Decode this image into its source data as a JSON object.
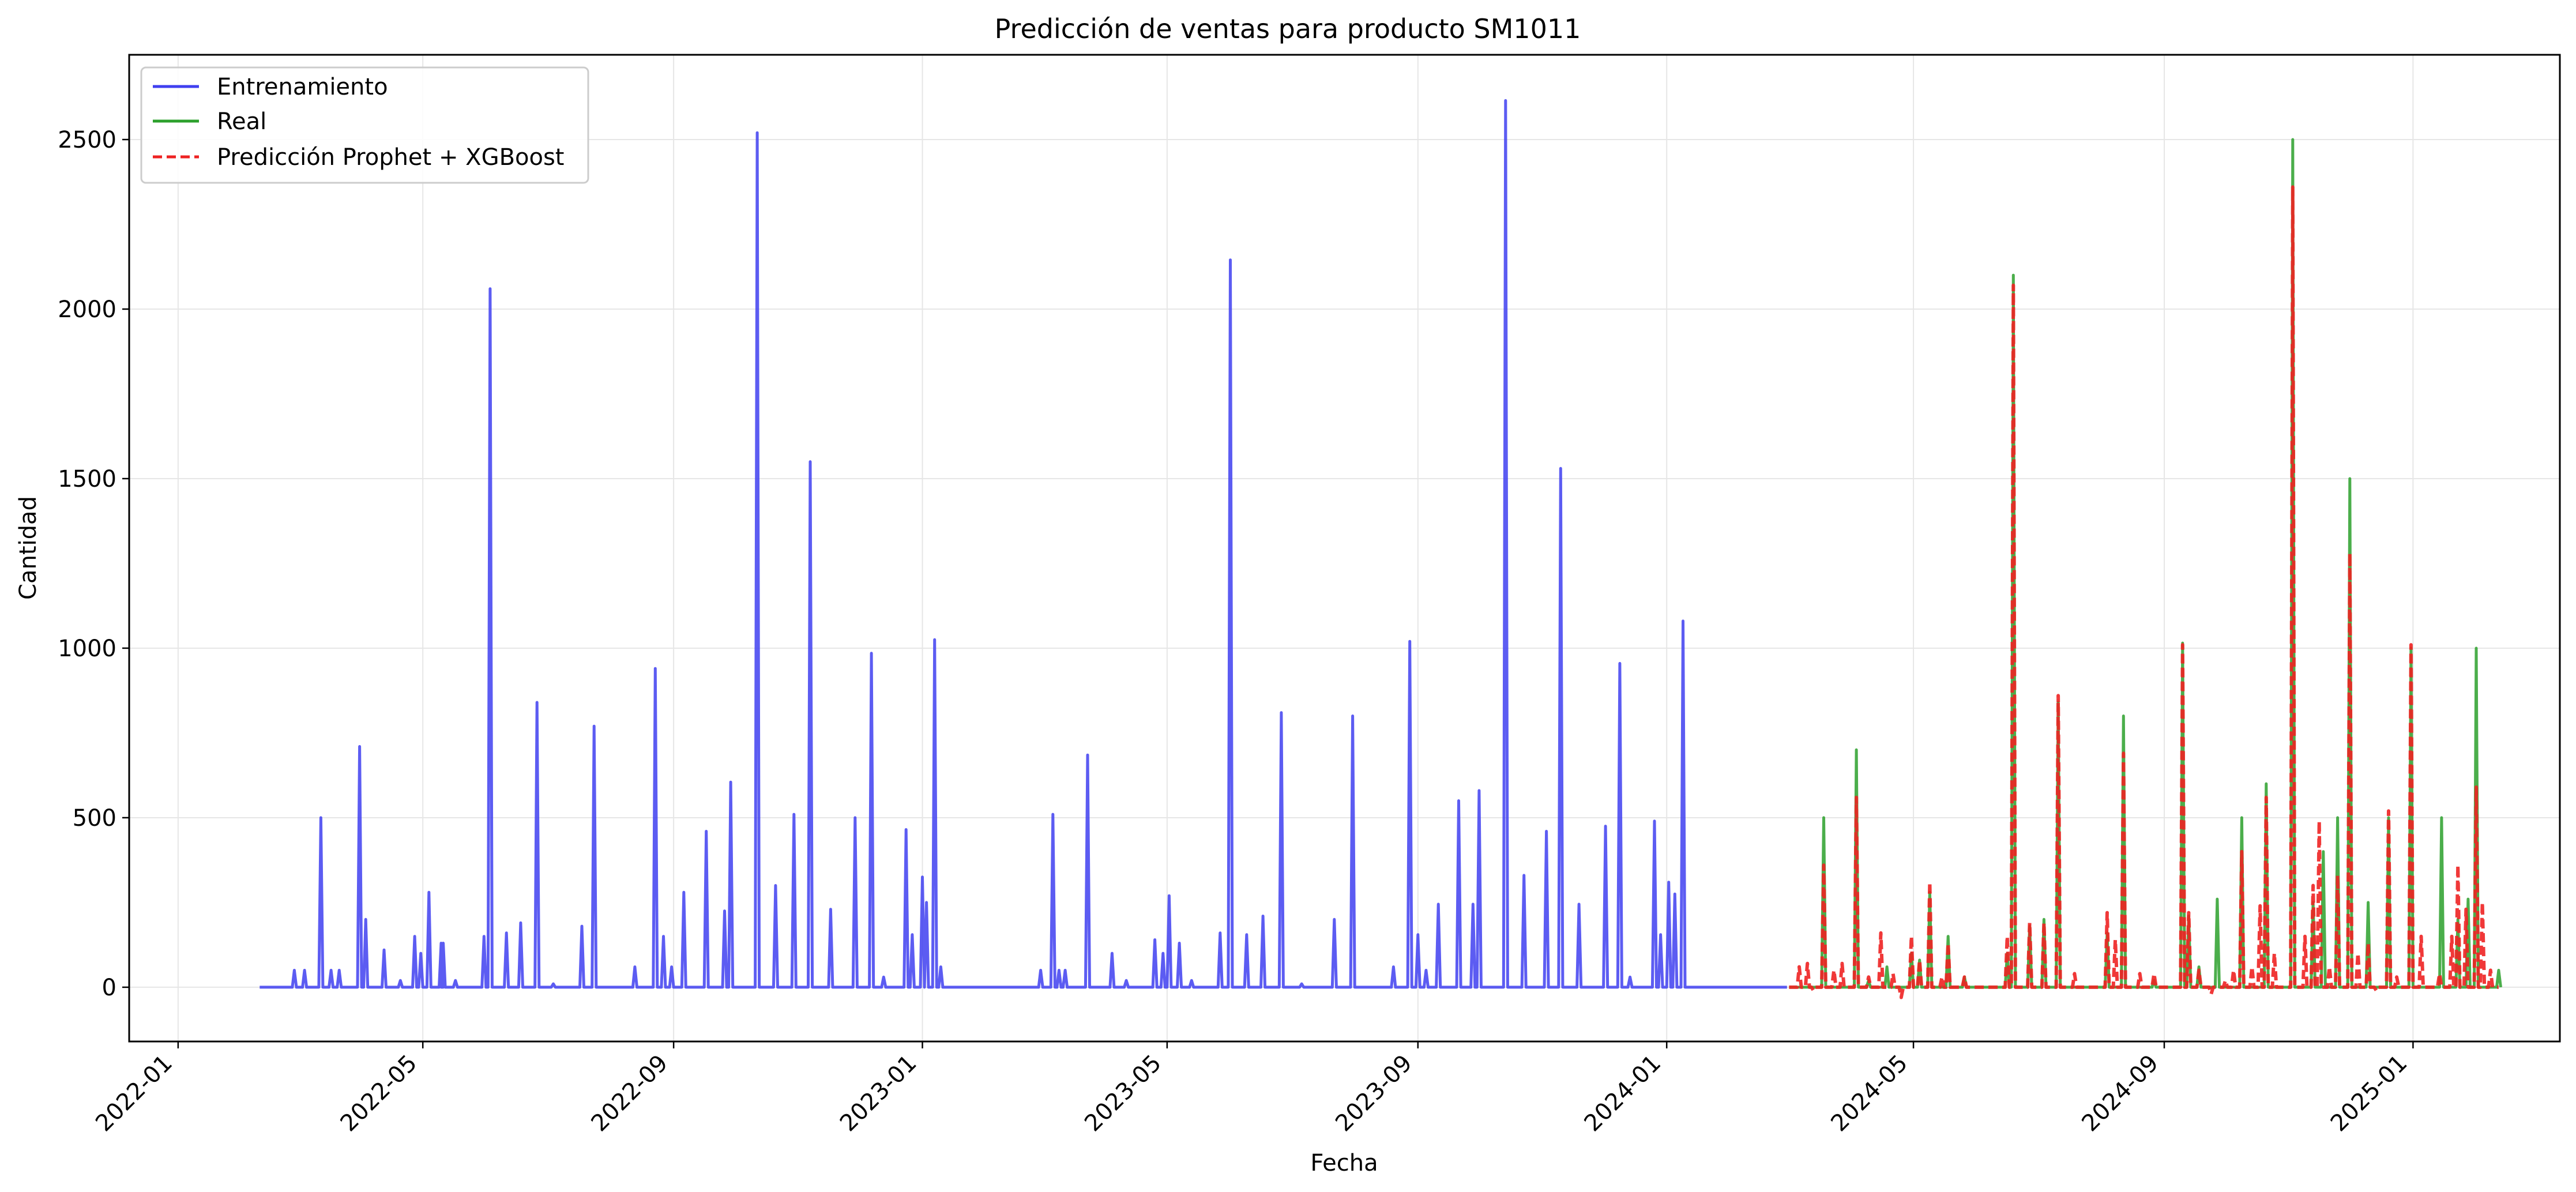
{
  "chart_data": {
    "type": "line",
    "title": "Predicción de ventas para producto SM1011",
    "xlabel": "Fecha",
    "ylabel": "Cantidad",
    "xlim": [
      "2021-12-08",
      "2025-03-14"
    ],
    "ylim": [
      -160,
      2750
    ],
    "x_ticks": [
      "2022-01",
      "2022-05",
      "2022-09",
      "2023-01",
      "2023-05",
      "2023-09",
      "2024-01",
      "2024-05",
      "2024-09",
      "2025-01"
    ],
    "y_ticks": [
      0,
      500,
      1000,
      1500,
      2000,
      2500
    ],
    "grid": true,
    "legend_position": "top-left",
    "series": [
      {
        "name": "Entrenamiento",
        "color": "#4040f0",
        "style": "solid",
        "baseline_range": [
          "2022-02-10",
          "2024-02-29"
        ],
        "points": [
          [
            "2022-02-27",
            50
          ],
          [
            "2022-03-04",
            50
          ],
          [
            "2022-03-12",
            500
          ],
          [
            "2022-03-17",
            50
          ],
          [
            "2022-03-21",
            50
          ],
          [
            "2022-03-31",
            710
          ],
          [
            "2022-04-03",
            200
          ],
          [
            "2022-04-12",
            110
          ],
          [
            "2022-04-20",
            20
          ],
          [
            "2022-04-27",
            150
          ],
          [
            "2022-04-30",
            100
          ],
          [
            "2022-05-04",
            280
          ],
          [
            "2022-05-10",
            130
          ],
          [
            "2022-05-11",
            130
          ],
          [
            "2022-05-17",
            20
          ],
          [
            "2022-05-31",
            150
          ],
          [
            "2022-06-03",
            2060
          ],
          [
            "2022-06-11",
            160
          ],
          [
            "2022-06-18",
            190
          ],
          [
            "2022-06-26",
            840
          ],
          [
            "2022-07-04",
            10
          ],
          [
            "2022-07-18",
            180
          ],
          [
            "2022-07-24",
            770
          ],
          [
            "2022-08-13",
            60
          ],
          [
            "2022-08-23",
            940
          ],
          [
            "2022-08-27",
            150
          ],
          [
            "2022-08-31",
            60
          ],
          [
            "2022-09-06",
            280
          ],
          [
            "2022-09-17",
            460
          ],
          [
            "2022-09-26",
            225
          ],
          [
            "2022-09-29",
            605
          ],
          [
            "2022-10-12",
            2520
          ],
          [
            "2022-10-21",
            300
          ],
          [
            "2022-10-30",
            510
          ],
          [
            "2022-11-07",
            1550
          ],
          [
            "2022-11-17",
            230
          ],
          [
            "2022-11-29",
            500
          ],
          [
            "2022-12-07",
            985
          ],
          [
            "2022-12-13",
            30
          ],
          [
            "2022-12-24",
            465
          ],
          [
            "2022-12-27",
            155
          ],
          [
            "2023-01-01",
            325
          ],
          [
            "2023-01-03",
            250
          ],
          [
            "2023-01-07",
            1025
          ],
          [
            "2023-01-10",
            60
          ],
          [
            "2023-02-28",
            50
          ],
          [
            "2023-03-06",
            510
          ],
          [
            "2023-03-09",
            50
          ],
          [
            "2023-03-12",
            50
          ],
          [
            "2023-03-23",
            685
          ],
          [
            "2023-04-04",
            100
          ],
          [
            "2023-04-11",
            20
          ],
          [
            "2023-04-25",
            140
          ],
          [
            "2023-04-29",
            100
          ],
          [
            "2023-05-02",
            270
          ],
          [
            "2023-05-07",
            130
          ],
          [
            "2023-05-13",
            20
          ],
          [
            "2023-05-27",
            160
          ],
          [
            "2023-06-01",
            2145
          ],
          [
            "2023-06-09",
            155
          ],
          [
            "2023-06-17",
            210
          ],
          [
            "2023-06-26",
            810
          ],
          [
            "2023-07-06",
            10
          ],
          [
            "2023-07-22",
            200
          ],
          [
            "2023-07-31",
            800
          ],
          [
            "2023-08-20",
            60
          ],
          [
            "2023-08-28",
            1020
          ],
          [
            "2023-09-01",
            155
          ],
          [
            "2023-09-05",
            50
          ],
          [
            "2023-09-11",
            245
          ],
          [
            "2023-09-21",
            550
          ],
          [
            "2023-09-28",
            245
          ],
          [
            "2023-10-01",
            580
          ],
          [
            "2023-10-14",
            2615
          ],
          [
            "2023-10-23",
            330
          ],
          [
            "2023-11-03",
            460
          ],
          [
            "2023-11-10",
            1530
          ],
          [
            "2023-11-19",
            245
          ],
          [
            "2023-12-02",
            475
          ],
          [
            "2023-12-09",
            955
          ],
          [
            "2023-12-14",
            30
          ],
          [
            "2023-12-26",
            490
          ],
          [
            "2023-12-29",
            155
          ],
          [
            "2024-01-02",
            310
          ],
          [
            "2024-01-05",
            275
          ],
          [
            "2024-01-09",
            1080
          ]
        ]
      },
      {
        "name": "Real",
        "color": "#2ca02c",
        "style": "solid",
        "baseline_range": [
          "2024-03-01",
          "2025-01-14"
        ],
        "points": [
          [
            "2024-03-18",
            500
          ],
          [
            "2024-04-03",
            700
          ],
          [
            "2024-04-09",
            20
          ],
          [
            "2024-04-18",
            60
          ],
          [
            "2024-04-30",
            100
          ],
          [
            "2024-05-04",
            80
          ],
          [
            "2024-05-09",
            280
          ],
          [
            "2024-05-18",
            150
          ],
          [
            "2024-05-26",
            30
          ],
          [
            "2024-06-16",
            100
          ],
          [
            "2024-06-19",
            2100
          ],
          [
            "2024-06-27",
            180
          ],
          [
            "2024-07-04",
            200
          ],
          [
            "2024-07-11",
            840
          ],
          [
            "2024-08-04",
            160
          ],
          [
            "2024-08-12",
            800
          ],
          [
            "2024-08-27",
            20
          ],
          [
            "2024-09-10",
            1015
          ],
          [
            "2024-09-13",
            210
          ],
          [
            "2024-09-18",
            60
          ],
          [
            "2024-09-27",
            260
          ],
          [
            "2024-10-09",
            500
          ],
          [
            "2024-10-21",
            600
          ],
          [
            "2024-11-03",
            2500
          ],
          [
            "2024-11-13",
            250
          ],
          [
            "2024-11-18",
            400
          ],
          [
            "2024-11-25",
            500
          ],
          [
            "2024-12-01",
            1500
          ],
          [
            "2024-12-10",
            250
          ],
          [
            "2024-12-20",
            500
          ],
          [
            "2024-12-31",
            1000
          ],
          [
            "2025-01-15",
            500
          ],
          [
            "2025-01-23",
            200
          ],
          [
            "2025-01-28",
            260
          ],
          [
            "2025-02-01",
            1000
          ],
          [
            "2025-02-12",
            50
          ]
        ]
      },
      {
        "name": "Predicción Prophet + XGBoost",
        "color": "#ee2222",
        "style": "dashed",
        "baseline_range": [
          "2024-03-01",
          "2025-02-12"
        ],
        "points": [
          [
            "2024-03-06",
            60
          ],
          [
            "2024-03-10",
            70
          ],
          [
            "2024-03-13",
            -10
          ],
          [
            "2024-03-18",
            360
          ],
          [
            "2024-03-23",
            50
          ],
          [
            "2024-03-27",
            70
          ],
          [
            "2024-04-03",
            560
          ],
          [
            "2024-04-09",
            30
          ],
          [
            "2024-04-15",
            160
          ],
          [
            "2024-04-21",
            40
          ],
          [
            "2024-04-25",
            -30
          ],
          [
            "2024-04-30",
            150
          ],
          [
            "2024-05-04",
            80
          ],
          [
            "2024-05-09",
            310
          ],
          [
            "2024-05-15",
            30
          ],
          [
            "2024-05-18",
            130
          ],
          [
            "2024-05-26",
            30
          ],
          [
            "2024-06-16",
            150
          ],
          [
            "2024-06-19",
            2070
          ],
          [
            "2024-06-27",
            190
          ],
          [
            "2024-07-04",
            190
          ],
          [
            "2024-07-11",
            860
          ],
          [
            "2024-07-19",
            40
          ],
          [
            "2024-08-04",
            220
          ],
          [
            "2024-08-08",
            140
          ],
          [
            "2024-08-12",
            690
          ],
          [
            "2024-08-20",
            40
          ],
          [
            "2024-08-27",
            40
          ],
          [
            "2024-09-10",
            1010
          ],
          [
            "2024-09-13",
            220
          ],
          [
            "2024-09-18",
            50
          ],
          [
            "2024-09-24",
            -20
          ],
          [
            "2024-10-01",
            20
          ],
          [
            "2024-10-05",
            50
          ],
          [
            "2024-10-09",
            400
          ],
          [
            "2024-10-14",
            60
          ],
          [
            "2024-10-18",
            240
          ],
          [
            "2024-10-21",
            560
          ],
          [
            "2024-10-25",
            100
          ],
          [
            "2024-11-03",
            2360
          ],
          [
            "2024-11-09",
            150
          ],
          [
            "2024-11-13",
            300
          ],
          [
            "2024-11-16",
            490
          ],
          [
            "2024-11-21",
            60
          ],
          [
            "2024-11-25",
            330
          ],
          [
            "2024-12-01",
            1280
          ],
          [
            "2024-12-05",
            100
          ],
          [
            "2024-12-10",
            130
          ],
          [
            "2024-12-14",
            -10
          ],
          [
            "2024-12-20",
            520
          ],
          [
            "2024-12-24",
            30
          ],
          [
            "2024-12-31",
            1010
          ],
          [
            "2025-01-05",
            150
          ],
          [
            "2025-01-14",
            40
          ],
          [
            "2025-01-20",
            150
          ],
          [
            "2025-01-23",
            360
          ],
          [
            "2025-01-27",
            230
          ],
          [
            "2025-02-01",
            590
          ],
          [
            "2025-02-04",
            250
          ],
          [
            "2025-02-08",
            50
          ]
        ]
      }
    ]
  }
}
